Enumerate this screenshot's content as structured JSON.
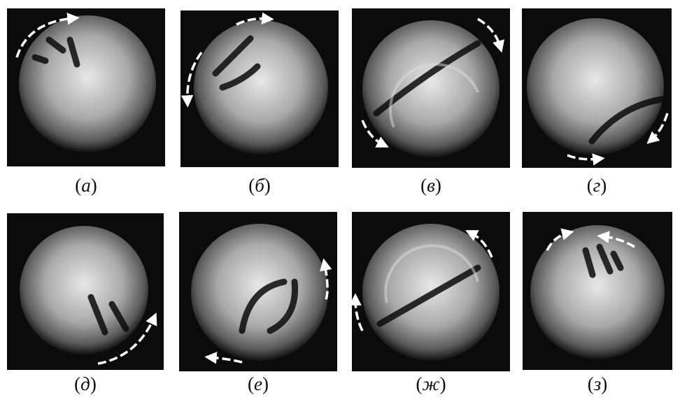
{
  "figure": {
    "panels": [
      {
        "label": "(а)"
      },
      {
        "label": "(б)"
      },
      {
        "label": "(в)"
      },
      {
        "label": "(г)"
      },
      {
        "label": "(д)"
      },
      {
        "label": "(е)"
      },
      {
        "label": "(ж)"
      },
      {
        "label": "(з)"
      }
    ]
  }
}
